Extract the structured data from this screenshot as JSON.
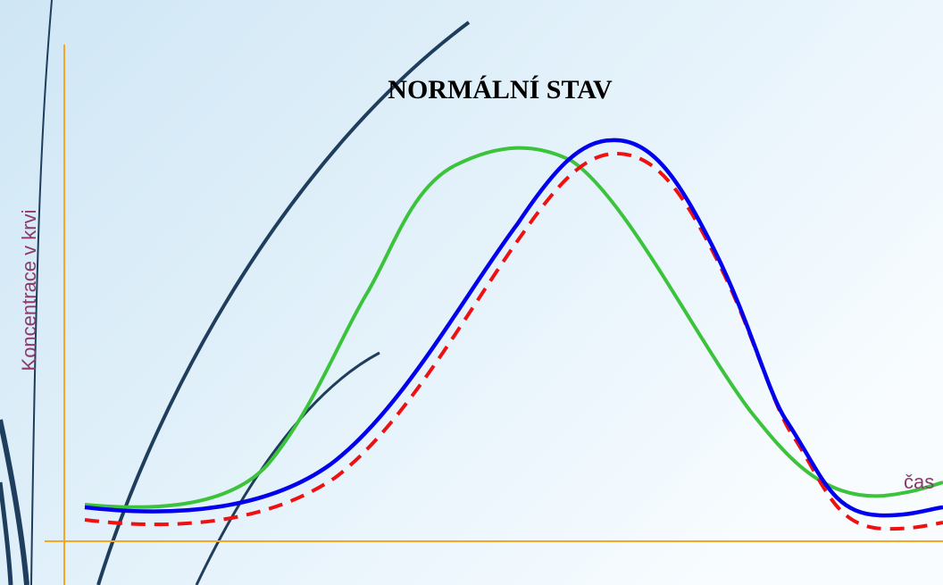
{
  "title": "NORMÁLNÍ STAV",
  "y_axis_label": "Koncentrace v krvi",
  "x_axis_label": "čas"
}
